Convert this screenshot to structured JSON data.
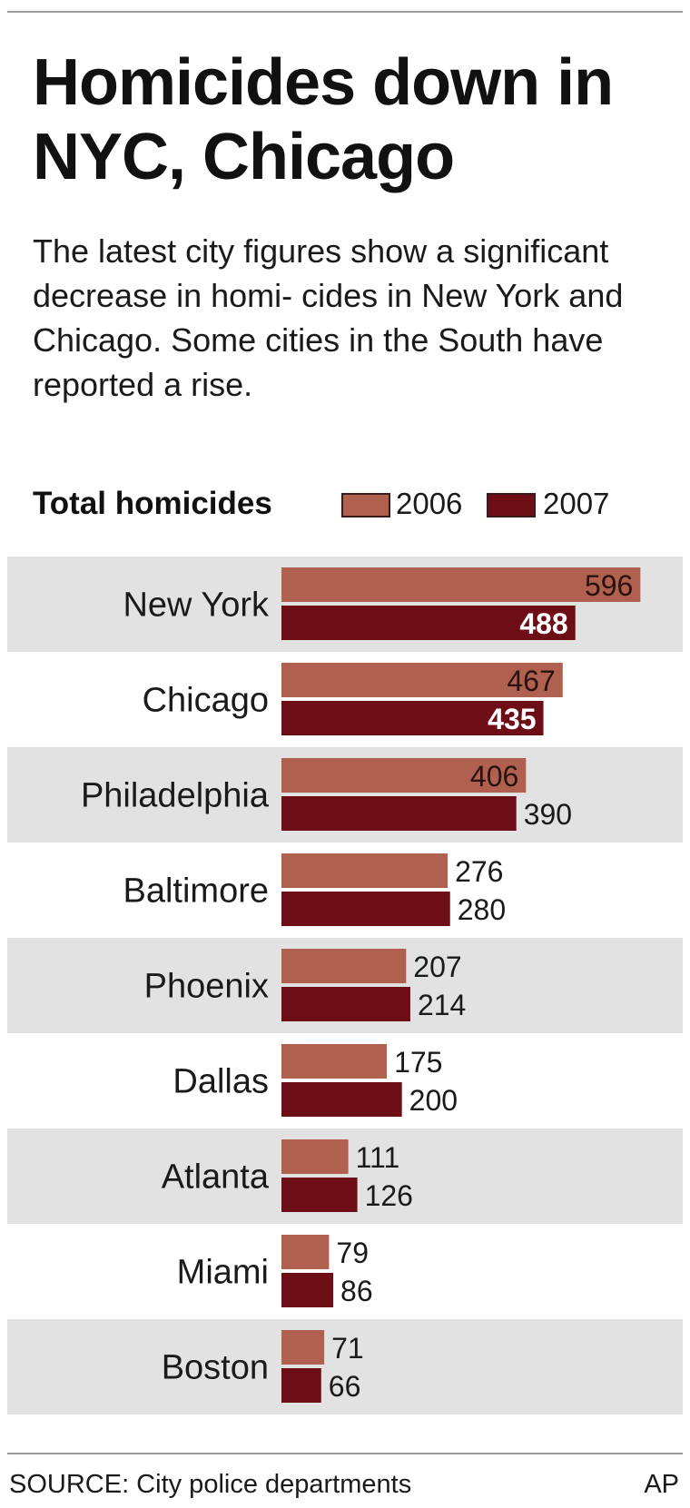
{
  "chart_data": {
    "type": "bar",
    "orientation": "horizontal",
    "title": "Homicides down in NYC, Chicago",
    "subtitle": "The latest city figures show a significant decrease in homi- cides in New York and Chicago. Some cities in the South have reported a rise.",
    "legend_title": "Total homicides",
    "legend_position": "top",
    "categories": [
      "New York",
      "Chicago",
      "Philadelphia",
      "Baltimore",
      "Phoenix",
      "Dallas",
      "Atlanta",
      "Miami",
      "Boston"
    ],
    "series": [
      {
        "name": "2006",
        "values": [
          596,
          467,
          406,
          276,
          207,
          175,
          111,
          79,
          71
        ],
        "color": "#b0604f"
      },
      {
        "name": "2007",
        "values": [
          488,
          435,
          390,
          280,
          214,
          200,
          126,
          86,
          66
        ],
        "color": "#6d0e17"
      }
    ],
    "xlim": [
      0,
      600
    ],
    "grid": false,
    "row_band_color": "#e2e2e2"
  },
  "footer": {
    "source": "SOURCE: City police departments",
    "credit": "AP"
  }
}
